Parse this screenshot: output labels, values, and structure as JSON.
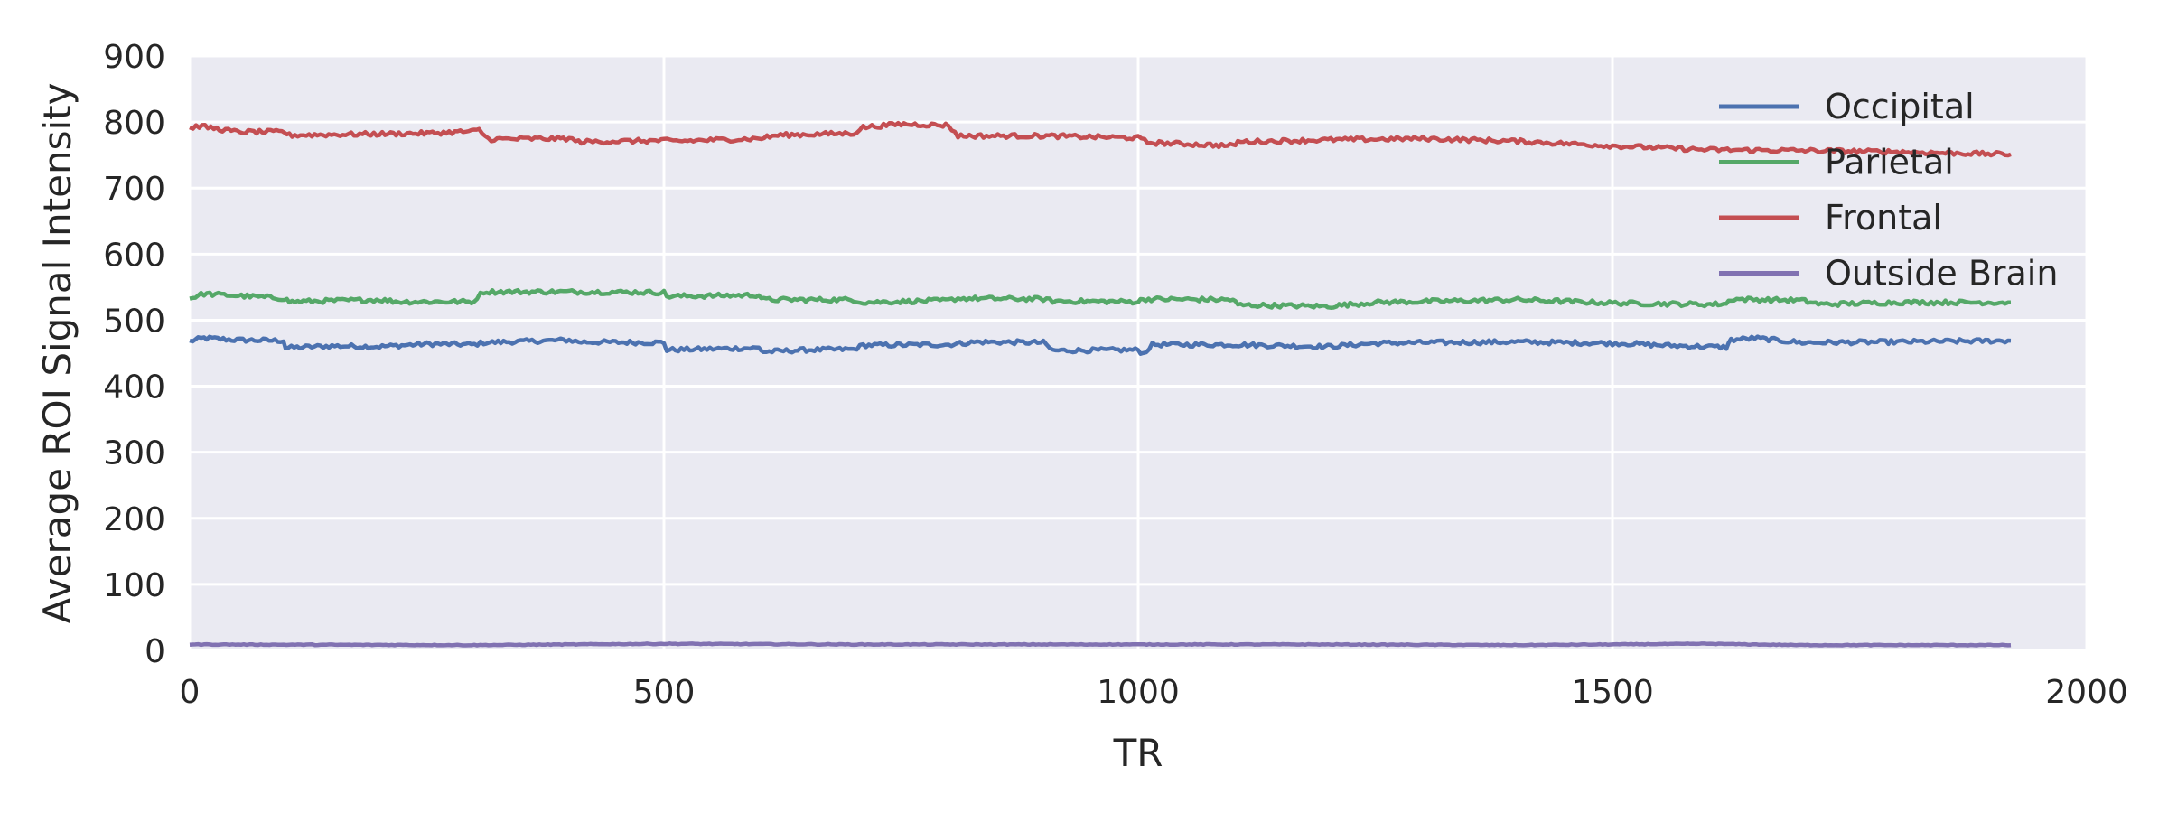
{
  "chart_data": {
    "type": "line",
    "xlabel": "TR",
    "ylabel": "Average ROI Signal Intensity",
    "xlim": [
      0,
      2000
    ],
    "ylim": [
      0,
      900
    ],
    "x_ticks": [
      0,
      500,
      1000,
      1500,
      2000
    ],
    "y_ticks": [
      0,
      100,
      200,
      300,
      400,
      500,
      600,
      700,
      800,
      900
    ],
    "grid": true,
    "legend_position": "top-right",
    "background_color": "#eaeaf2",
    "grid_color": "#ffffff",
    "series": [
      {
        "name": "Occipital",
        "color": "#4c72b0",
        "points": [
          [
            0,
            468
          ],
          [
            15,
            473
          ],
          [
            50,
            470
          ],
          [
            99,
            469
          ],
          [
            101,
            458
          ],
          [
            150,
            461
          ],
          [
            200,
            460
          ],
          [
            250,
            464
          ],
          [
            300,
            463
          ],
          [
            310,
            466
          ],
          [
            400,
            470
          ],
          [
            410,
            467
          ],
          [
            500,
            466
          ],
          [
            503,
            455
          ],
          [
            600,
            458
          ],
          [
            605,
            452
          ],
          [
            650,
            455
          ],
          [
            700,
            456
          ],
          [
            710,
            462
          ],
          [
            800,
            463
          ],
          [
            830,
            467
          ],
          [
            900,
            466
          ],
          [
            910,
            454
          ],
          [
            1000,
            455
          ],
          [
            1005,
            449
          ],
          [
            1015,
            463
          ],
          [
            1100,
            463
          ],
          [
            1200,
            460
          ],
          [
            1250,
            465
          ],
          [
            1300,
            466
          ],
          [
            1400,
            467
          ],
          [
            1500,
            465
          ],
          [
            1510,
            465
          ],
          [
            1550,
            462
          ],
          [
            1620,
            459
          ],
          [
            1625,
            470
          ],
          [
            1650,
            473
          ],
          [
            1700,
            466
          ],
          [
            1800,
            467
          ],
          [
            1920,
            469
          ]
        ]
      },
      {
        "name": "Parietal",
        "color": "#55a868",
        "points": [
          [
            0,
            533
          ],
          [
            15,
            540
          ],
          [
            100,
            533
          ],
          [
            105,
            528
          ],
          [
            200,
            531
          ],
          [
            220,
            528
          ],
          [
            300,
            528
          ],
          [
            303,
            535
          ],
          [
            310,
            543
          ],
          [
            400,
            543
          ],
          [
            500,
            542
          ],
          [
            503,
            536
          ],
          [
            600,
            538
          ],
          [
            605,
            531
          ],
          [
            700,
            531
          ],
          [
            710,
            527
          ],
          [
            800,
            530
          ],
          [
            810,
            533
          ],
          [
            900,
            532
          ],
          [
            910,
            529
          ],
          [
            1000,
            528
          ],
          [
            1005,
            532
          ],
          [
            1100,
            531
          ],
          [
            1105,
            523
          ],
          [
            1200,
            521
          ],
          [
            1250,
            527
          ],
          [
            1400,
            531
          ],
          [
            1500,
            526
          ],
          [
            1600,
            524
          ],
          [
            1620,
            525
          ],
          [
            1625,
            532
          ],
          [
            1700,
            530
          ],
          [
            1720,
            524
          ],
          [
            1800,
            527
          ],
          [
            1920,
            527
          ]
        ]
      },
      {
        "name": "Frontal",
        "color": "#c44e52",
        "points": [
          [
            0,
            791
          ],
          [
            10,
            794
          ],
          [
            50,
            785
          ],
          [
            100,
            785
          ],
          [
            105,
            780
          ],
          [
            200,
            782
          ],
          [
            250,
            783
          ],
          [
            300,
            786
          ],
          [
            305,
            788
          ],
          [
            315,
            774
          ],
          [
            400,
            775
          ],
          [
            410,
            770
          ],
          [
            500,
            772
          ],
          [
            510,
            771
          ],
          [
            600,
            775
          ],
          [
            620,
            780
          ],
          [
            700,
            783
          ],
          [
            710,
            792
          ],
          [
            750,
            797
          ],
          [
            800,
            795
          ],
          [
            810,
            779
          ],
          [
            900,
            779
          ],
          [
            1000,
            776
          ],
          [
            1010,
            769
          ],
          [
            1100,
            764
          ],
          [
            1105,
            770
          ],
          [
            1200,
            773
          ],
          [
            1300,
            775
          ],
          [
            1400,
            771
          ],
          [
            1500,
            764
          ],
          [
            1600,
            758
          ],
          [
            1700,
            757
          ],
          [
            1800,
            755
          ],
          [
            1920,
            751
          ]
        ]
      },
      {
        "name": "Outside Brain",
        "color": "#8172b2",
        "points": [
          [
            0,
            9
          ],
          [
            300,
            8
          ],
          [
            500,
            10
          ],
          [
            700,
            9
          ],
          [
            1000,
            9
          ],
          [
            1200,
            9
          ],
          [
            1400,
            8
          ],
          [
            1600,
            10
          ],
          [
            1700,
            8
          ],
          [
            1920,
            8
          ]
        ]
      }
    ]
  }
}
